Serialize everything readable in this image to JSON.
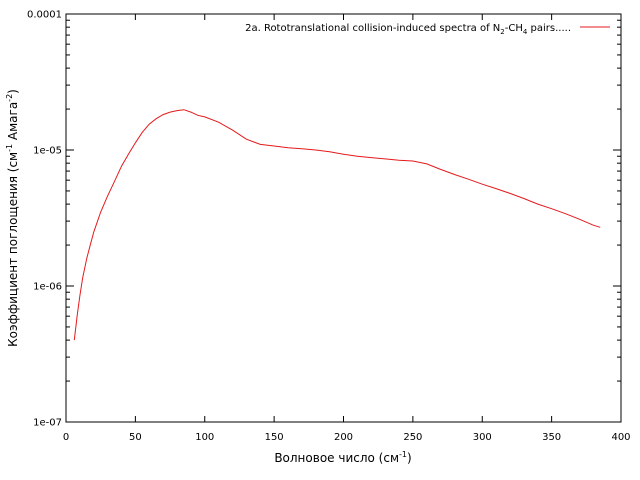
{
  "chart_data": {
    "type": "line",
    "title": "",
    "xlabel": "Волновое число (см",
    "xlabel_sup": "-1",
    "xlabel_end": ")",
    "ylabel": "Коэффициент поглощения (см",
    "ylabel_sup1": "-1",
    "ylabel_mid": " Амага",
    "ylabel_sup2": "-2",
    "ylabel_end": ")",
    "xlim": [
      0,
      400
    ],
    "ylim": [
      1e-07,
      0.0001
    ],
    "yscale": "log",
    "grid": false,
    "legend_position": "top-right",
    "x_ticks": [
      "0",
      "50",
      "100",
      "150",
      "200",
      "250",
      "300",
      "350",
      "400"
    ],
    "y_ticks": [
      "1e-07",
      "1e-06",
      "1e-05",
      "0.0001"
    ],
    "y_tick_values": [
      1e-07,
      1e-06,
      1e-05,
      0.0001
    ],
    "legend": {
      "text_before": "2a. Rototranslational collision-induced spectra of N",
      "sub1": "2",
      "text_mid": "-CH",
      "sub2": "4",
      "text_after": " pairs.....",
      "color": "#e41a1c"
    },
    "series": [
      {
        "color": "#e41a1c",
        "x": [
          6,
          8,
          10,
          12,
          15,
          18,
          20,
          25,
          30,
          35,
          40,
          45,
          50,
          55,
          60,
          65,
          70,
          75,
          80,
          85,
          90,
          95,
          100,
          110,
          120,
          130,
          140,
          150,
          160,
          170,
          180,
          190,
          200,
          210,
          220,
          230,
          240,
          250,
          260,
          270,
          280,
          290,
          300,
          310,
          320,
          330,
          340,
          350,
          360,
          370,
          380,
          385
        ],
        "y": [
          4e-07,
          6e-07,
          8.5e-07,
          1.15e-06,
          1.6e-06,
          2.1e-06,
          2.5e-06,
          3.5e-06,
          4.6e-06,
          5.9e-06,
          7.6e-06,
          9.3e-06,
          1.13e-05,
          1.35e-05,
          1.55e-05,
          1.7e-05,
          1.82e-05,
          1.9e-05,
          1.95e-05,
          1.98e-05,
          1.9e-05,
          1.8e-05,
          1.75e-05,
          1.6e-05,
          1.4e-05,
          1.2e-05,
          1.1e-05,
          1.07e-05,
          1.04e-05,
          1.02e-05,
          1e-05,
          9.7e-06,
          9.3e-06,
          9e-06,
          8.8e-06,
          8.6e-06,
          8.4e-06,
          8.3e-06,
          7.9e-06,
          7.2e-06,
          6.6e-06,
          6.1e-06,
          5.6e-06,
          5.2e-06,
          4.8e-06,
          4.4e-06,
          4e-06,
          3.7e-06,
          3.4e-06,
          3.1e-06,
          2.8e-06,
          2.7e-06
        ]
      }
    ]
  }
}
